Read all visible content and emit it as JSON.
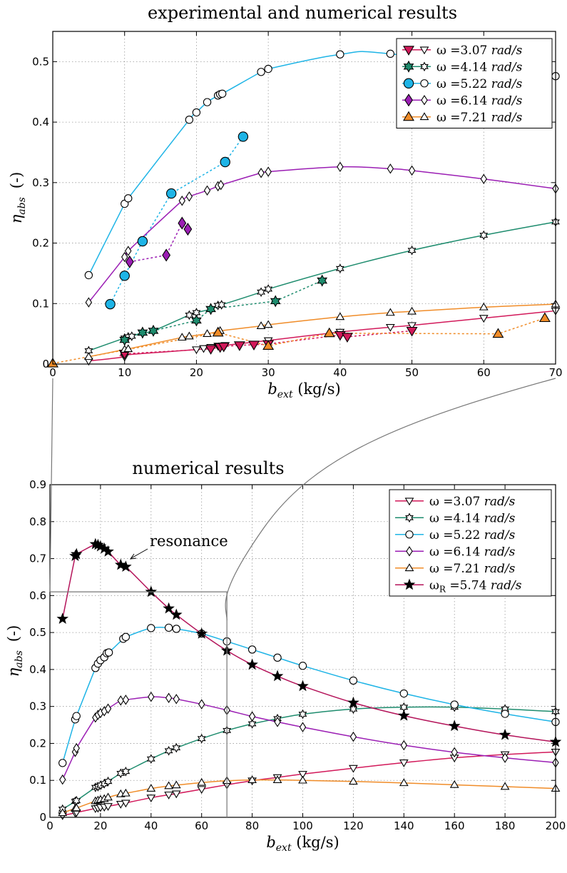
{
  "chart_data": [
    {
      "type": "line",
      "title": "experimental and numerical results",
      "xlabel": "b_ext (kg/s)",
      "xlabel_main": "b",
      "xlabel_sub": "ext",
      "xlabel_unit": " (kg/s)",
      "ylabel_main": "η",
      "ylabel_sub": "abs",
      "ylabel_unit": "(-)",
      "xlim": [
        0,
        70
      ],
      "ylim": [
        0,
        0.55
      ],
      "xticks": [
        "0",
        "10",
        "20",
        "30",
        "40",
        "50",
        "60",
        "70"
      ],
      "yticks": [
        "0",
        "0.1",
        "0.2",
        "0.3",
        "0.4",
        "0.5"
      ],
      "grid": true,
      "legend_position": "top-right",
      "series": [
        {
          "name": "ω =3.07 rad/s",
          "sym": "ω",
          "label": " =3.07 ",
          "unit": "rad/s",
          "color": "#d2195a",
          "marker": "tri-down",
          "numerical": {
            "x": [
              5,
              10,
              10,
              20,
              21,
              22,
              23,
              24,
              30,
              40,
              47,
              50,
              60,
              70
            ],
            "y": [
              0.005,
              0.012,
              0.015,
              0.024,
              0.026,
              0.028,
              0.03,
              0.031,
              0.039,
              0.053,
              0.061,
              0.064,
              0.076,
              0.088
            ]
          },
          "experimental": {
            "x": [
              10,
              22,
              23.3,
              23.8,
              26,
              28,
              30,
              40,
              41,
              50
            ],
            "y": [
              0.017,
              0.025,
              0.028,
              0.029,
              0.031,
              0.032,
              0.033,
              0.048,
              0.045,
              0.055
            ]
          }
        },
        {
          "name": "ω =4.14 rad/s",
          "sym": "ω",
          "label": " =4.14 ",
          "unit": "rad/s",
          "color": "#1e8c6e",
          "marker": "star6",
          "numerical": {
            "x": [
              5,
              10,
              10.5,
              11,
              12.5,
              14,
              19,
              20,
              22,
              23,
              23.5,
              29,
              30,
              40,
              50,
              60,
              70
            ],
            "y": [
              0.022,
              0.043,
              0.045,
              0.046,
              0.052,
              0.055,
              0.081,
              0.085,
              0.091,
              0.097,
              0.098,
              0.119,
              0.124,
              0.158,
              0.188,
              0.213,
              0.235
            ]
          },
          "experimental": {
            "x": [
              10,
              12.5,
              14,
              20,
              22,
              31,
              37.5
            ],
            "y": [
              0.04,
              0.052,
              0.055,
              0.072,
              0.091,
              0.104,
              0.138
            ]
          }
        },
        {
          "name": "ω =5.22 rad/s",
          "sym": "ω",
          "label": " =5.22 ",
          "unit": "rad/s",
          "color": "#1eb4e6",
          "marker": "circle",
          "numerical": {
            "x": [
              5,
              10,
              10.5,
              19,
              20,
              21.5,
              23,
              23.3,
              23.6,
              29,
              30,
              40,
              47,
              70
            ],
            "y": [
              0.147,
              0.265,
              0.274,
              0.404,
              0.416,
              0.433,
              0.444,
              0.446,
              0.447,
              0.483,
              0.488,
              0.512,
              0.513,
              0.476
            ]
          },
          "experimental": {
            "x": [
              8,
              10,
              12.5,
              16.5,
              24,
              26.5
            ],
            "y": [
              0.099,
              0.146,
              0.203,
              0.282,
              0.334,
              0.376
            ]
          }
        },
        {
          "name": "ω =6.14 rad/s",
          "sym": "ω",
          "label": " =6.14 ",
          "unit": "rad/s",
          "color": "#9b1eb4",
          "marker": "diamond",
          "numerical": {
            "x": [
              5,
              10,
              10.5,
              18,
              19,
              21.5,
              23,
              23.4,
              29,
              30,
              40,
              47,
              50,
              60,
              70
            ],
            "y": [
              0.102,
              0.177,
              0.187,
              0.27,
              0.277,
              0.287,
              0.294,
              0.296,
              0.316,
              0.318,
              0.326,
              0.323,
              0.32,
              0.306,
              0.29
            ]
          },
          "experimental": {
            "x": [
              10.7,
              15.8,
              18,
              18.8
            ],
            "y": [
              0.169,
              0.18,
              0.233,
              0.223
            ]
          }
        },
        {
          "name": "ω =7.21 rad/s",
          "sym": "ω",
          "label": " =7.21 ",
          "unit": "rad/s",
          "color": "#f08c28",
          "marker": "tri-up",
          "numerical": {
            "x": [
              5,
              10,
              10.5,
              18,
              19,
              21.5,
              23,
              23.3,
              29,
              30,
              40,
              47,
              50,
              60,
              70
            ],
            "y": [
              0.012,
              0.024,
              0.025,
              0.044,
              0.046,
              0.05,
              0.054,
              0.055,
              0.063,
              0.065,
              0.078,
              0.085,
              0.087,
              0.094,
              0.099
            ]
          },
          "experimental": {
            "x": [
              0,
              23,
              30,
              38.5,
              62,
              68.5
            ],
            "y": [
              0.001,
              0.052,
              0.03,
              0.051,
              0.05,
              0.076
            ]
          }
        }
      ]
    },
    {
      "type": "line",
      "title": "numerical results",
      "xlabel": "b_ext (kg/s)",
      "xlabel_main": "b",
      "xlabel_sub": "ext",
      "xlabel_unit": " (kg/s)",
      "ylabel_main": "η",
      "ylabel_sub": "abs",
      "ylabel_unit": "(-)",
      "xlim": [
        0,
        200
      ],
      "ylim": [
        0,
        0.9
      ],
      "xticks": [
        "0",
        "20",
        "40",
        "60",
        "80",
        "100",
        "120",
        "140",
        "160",
        "180",
        "200"
      ],
      "yticks": [
        "0",
        "0.1",
        "0.2",
        "0.3",
        "0.4",
        "0.5",
        "0.6",
        "0.7",
        "0.8",
        "0.9"
      ],
      "grid": true,
      "legend_position": "top-right",
      "annotation": "resonance",
      "series": [
        {
          "name": "ω =3.07 rad/s",
          "sym": "ω",
          "label": " =3.07 ",
          "unit": "rad/s",
          "color": "#d2195a",
          "marker": "tri-down",
          "x": [
            5,
            10,
            10.5,
            18,
            19,
            20,
            21.5,
            23,
            28,
            30,
            40,
            47,
            50,
            60,
            70,
            80,
            90,
            100,
            120,
            140,
            160,
            180,
            200
          ],
          "y": [
            0.005,
            0.012,
            0.013,
            0.024,
            0.025,
            0.027,
            0.028,
            0.03,
            0.036,
            0.039,
            0.053,
            0.061,
            0.064,
            0.076,
            0.088,
            0.099,
            0.108,
            0.117,
            0.133,
            0.148,
            0.161,
            0.17,
            0.177
          ]
        },
        {
          "name": "ω =4.14 rad/s",
          "sym": "ω",
          "label": " =4.14 ",
          "unit": "rad/s",
          "color": "#1e8c6e",
          "marker": "star6",
          "x": [
            5,
            10,
            10.5,
            18,
            19,
            20,
            21.5,
            23,
            28,
            30,
            40,
            47,
            50,
            60,
            70,
            80,
            90,
            100,
            120,
            140,
            160,
            180,
            200
          ],
          "y": [
            0.022,
            0.043,
            0.045,
            0.081,
            0.083,
            0.087,
            0.091,
            0.097,
            0.119,
            0.124,
            0.158,
            0.18,
            0.188,
            0.213,
            0.235,
            0.253,
            0.267,
            0.279,
            0.293,
            0.298,
            0.298,
            0.293,
            0.286
          ]
        },
        {
          "name": "ω =5.22 rad/s",
          "sym": "ω",
          "label": " =5.22 ",
          "unit": "rad/s",
          "color": "#1eb4e6",
          "marker": "circle",
          "x": [
            5,
            10,
            10.5,
            18,
            19,
            20,
            21.5,
            22.5,
            23.3,
            29,
            30,
            40,
            47,
            50,
            60,
            70,
            80,
            90,
            100,
            120,
            140,
            160,
            180,
            200
          ],
          "y": [
            0.147,
            0.265,
            0.274,
            0.404,
            0.416,
            0.425,
            0.433,
            0.444,
            0.446,
            0.483,
            0.488,
            0.512,
            0.513,
            0.51,
            0.497,
            0.476,
            0.454,
            0.432,
            0.41,
            0.37,
            0.335,
            0.305,
            0.28,
            0.258
          ]
        },
        {
          "name": "ω =6.14 rad/s",
          "sym": "ω",
          "label": " =6.14 ",
          "unit": "rad/s",
          "color": "#9b1eb4",
          "marker": "diamond",
          "x": [
            5,
            10,
            10.5,
            18,
            19,
            20,
            21.5,
            23,
            28,
            30,
            40,
            47,
            50,
            60,
            70,
            80,
            90,
            100,
            120,
            140,
            160,
            180,
            200
          ],
          "y": [
            0.102,
            0.177,
            0.187,
            0.27,
            0.277,
            0.282,
            0.287,
            0.294,
            0.316,
            0.318,
            0.326,
            0.323,
            0.32,
            0.306,
            0.29,
            0.273,
            0.258,
            0.244,
            0.218,
            0.195,
            0.176,
            0.161,
            0.148
          ]
        },
        {
          "name": "ω =7.21 rad/s",
          "sym": "ω",
          "label": " =7.21 ",
          "unit": "rad/s",
          "color": "#f08c28",
          "marker": "tri-up",
          "x": [
            5,
            10,
            10.5,
            18,
            19,
            20,
            21.5,
            23,
            28,
            30,
            40,
            47,
            50,
            60,
            70,
            80,
            90,
            100,
            120,
            140,
            160,
            180,
            200
          ],
          "y": [
            0.012,
            0.024,
            0.025,
            0.044,
            0.046,
            0.048,
            0.05,
            0.054,
            0.063,
            0.065,
            0.078,
            0.085,
            0.087,
            0.094,
            0.099,
            0.101,
            0.101,
            0.1,
            0.097,
            0.093,
            0.088,
            0.083,
            0.078
          ]
        },
        {
          "name": "ωR =5.74 rad/s",
          "sym": "ω",
          "sub": "R",
          "label": " =5.74 ",
          "unit": "rad/s",
          "color": "#b4145a",
          "marker": "star5",
          "x": [
            5,
            10,
            10.5,
            18,
            19,
            20,
            21.5,
            23,
            28,
            30,
            40,
            47,
            50,
            60,
            70,
            80,
            90,
            100,
            120,
            140,
            160,
            180,
            200
          ],
          "y": [
            0.537,
            0.707,
            0.712,
            0.739,
            0.737,
            0.733,
            0.727,
            0.719,
            0.683,
            0.678,
            0.61,
            0.565,
            0.548,
            0.497,
            0.451,
            0.413,
            0.382,
            0.355,
            0.31,
            0.275,
            0.247,
            0.223,
            0.204
          ]
        }
      ]
    }
  ]
}
